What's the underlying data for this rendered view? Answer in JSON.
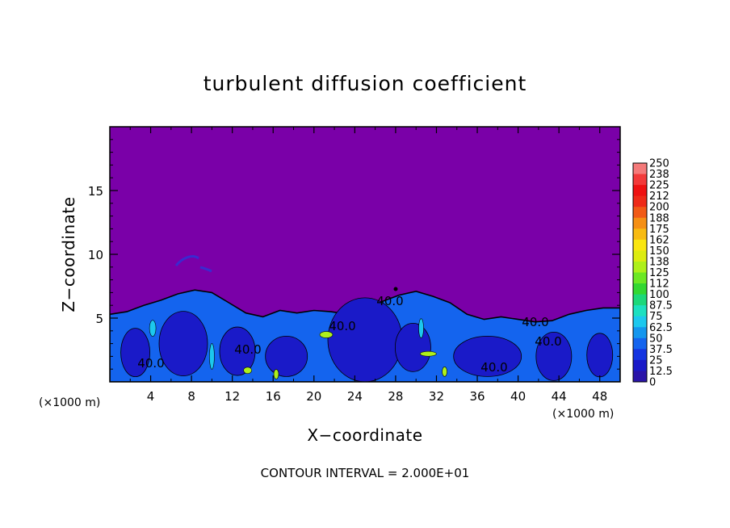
{
  "chart_data": {
    "type": "heatmap",
    "title": "turbulent diffusion coefficient",
    "xlabel": "X−coordinate",
    "ylabel": "Z−coordinate",
    "x_unit_left": "(×1000 m)",
    "x_unit_right": "(×1000 m)",
    "xlim": [
      0,
      50
    ],
    "ylim": [
      0,
      20
    ],
    "x_ticks": [
      "4",
      "8",
      "12",
      "16",
      "20",
      "24",
      "28",
      "32",
      "36",
      "40",
      "44",
      "48"
    ],
    "y_ticks": [
      "5",
      "10",
      "15"
    ],
    "contour_interval_text": "CONTOUR INTERVAL = 2.000E+01",
    "contour_labels": [
      "40.0",
      "40.0",
      "40.0",
      "40.0",
      "40.0",
      "40.0",
      "40.0"
    ],
    "background_value": 0,
    "colorbar": {
      "labels": [
        "250",
        "238",
        "225",
        "212",
        "200",
        "188",
        "175",
        "162",
        "150",
        "138",
        "125",
        "112",
        "100",
        "87.5",
        "75",
        "62.5",
        "50",
        "37.5",
        "25",
        "12.5",
        "0"
      ],
      "colors": [
        "#f47a7a",
        "#f23a3a",
        "#ee1212",
        "#ee2a18",
        "#f15a16",
        "#f58f14",
        "#f8bb12",
        "#fae60f",
        "#dcec10",
        "#aef01a",
        "#6ce824",
        "#32d832",
        "#1cd87a",
        "#1ce0c0",
        "#1cc8ee",
        "#1496ee",
        "#1464ee",
        "#1434e0",
        "#1a1ac8",
        "#2a14a8",
        "#7a00a8"
      ]
    },
    "turbulent_layer_top_z": [
      5.3,
      5.5,
      6.0,
      6.4,
      6.9,
      7.2,
      7.0,
      6.2,
      5.4,
      5.1,
      5.6,
      5.4,
      5.6,
      5.5,
      5.3,
      5.7,
      6.3,
      6.8,
      7.1,
      6.7,
      6.2,
      5.3,
      4.9,
      5.1,
      4.9,
      4.7,
      4.8,
      5.3,
      5.6,
      5.8,
      5.8
    ]
  }
}
